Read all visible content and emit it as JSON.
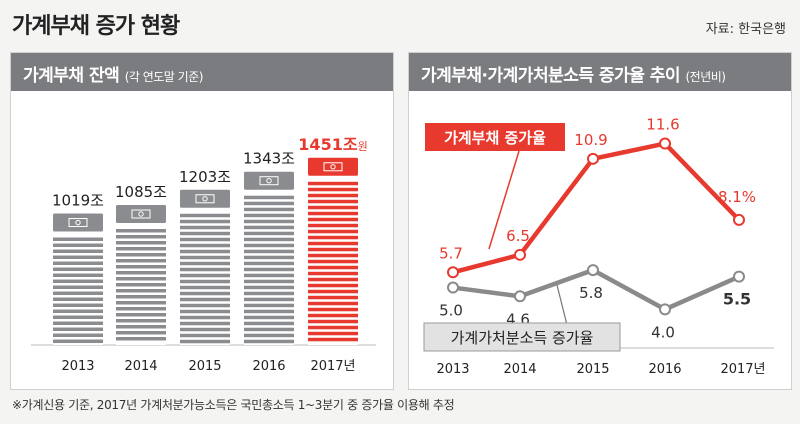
{
  "header": {
    "title": "가계부채 증가 현황",
    "source": "자료: 한국은행"
  },
  "left_panel": {
    "title": "가계부채 잔액",
    "subtitle": "(각 연도말 기준)"
  },
  "right_panel": {
    "title": "가계부채·가계가처분소득 증가율 추이",
    "subtitle": "(전년비)"
  },
  "footnote": "※가계신용 기준, 2017년 가계처분가능소득은 국민총소득 1~3분기 중 증가율 이용해 추정",
  "colors": {
    "accent_red": "#e8392e",
    "bar_gray": "#8a8c90",
    "line_gray": "#8a8a8a",
    "panel_header": "#7b7c80"
  },
  "chart_data": [
    {
      "type": "bar",
      "title": "가계부채 잔액 (각 연도말 기준)",
      "categories": [
        "2013",
        "2014",
        "2015",
        "2016",
        "2017년"
      ],
      "values": [
        1019,
        1085,
        1203,
        1343,
        1451
      ],
      "value_labels": [
        "1019조",
        "1085조",
        "1203조",
        "1343조",
        "1451조"
      ],
      "unit": "원",
      "highlight_index": 4,
      "ylim": [
        0,
        1550
      ]
    },
    {
      "type": "line",
      "title": "가계부채·가계가처분소득 증가율 추이 (전년비)",
      "categories": [
        "2013",
        "2014",
        "2015",
        "2016",
        "2017년"
      ],
      "ylim": [
        2,
        13
      ],
      "series": [
        {
          "name": "가계부채 증가율",
          "values": [
            5.7,
            6.5,
            10.9,
            11.6,
            8.1
          ],
          "labels": [
            "5.7",
            "6.5",
            "10.9",
            "11.6",
            "8.1%"
          ],
          "color": "#e8392e"
        },
        {
          "name": "가계가처분소득 증가율",
          "values": [
            5.0,
            4.6,
            5.8,
            4.0,
            5.5
          ],
          "labels": [
            "5.0",
            "4.6",
            "5.8",
            "4.0",
            "5.5"
          ],
          "color": "#8a8a8a"
        }
      ]
    }
  ]
}
